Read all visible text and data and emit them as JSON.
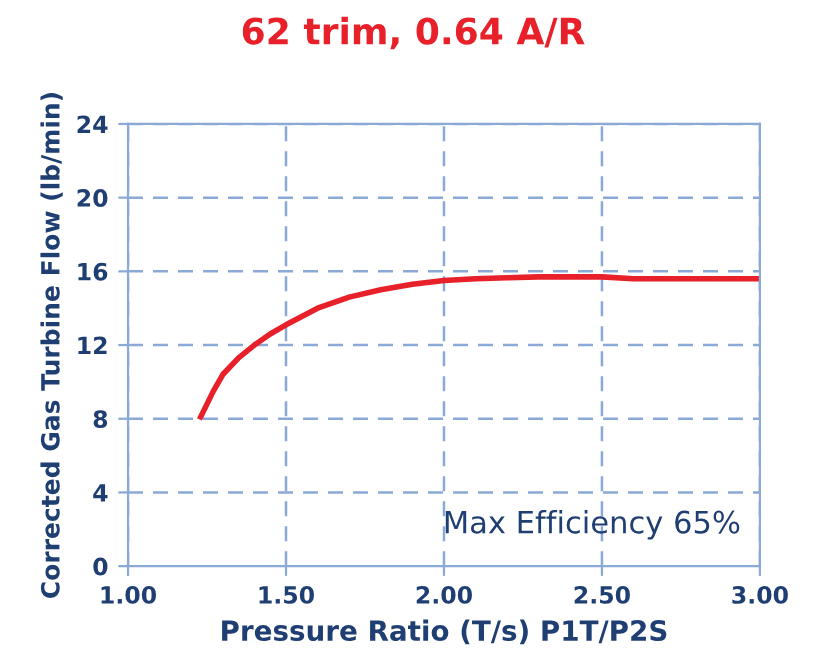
{
  "chart_data": {
    "type": "line",
    "title": "62 trim, 0.64 A/R",
    "xlabel": "Pressure Ratio (T/s) P1T/P2S",
    "ylabel": "Corrected Gas Turbine Flow (lb/min)",
    "annotations": [
      "Max Efficiency 65%"
    ],
    "series": [
      {
        "color": "#e8202a",
        "x": [
          1.23,
          1.27,
          1.3,
          1.35,
          1.4,
          1.45,
          1.5,
          1.6,
          1.7,
          1.8,
          1.9,
          2.0,
          2.1,
          2.2,
          2.3,
          2.4,
          2.5,
          2.6,
          2.8,
          3.0
        ],
        "values": [
          8.1,
          9.5,
          10.4,
          11.3,
          12.0,
          12.6,
          13.1,
          14.0,
          14.6,
          15.0,
          15.3,
          15.5,
          15.6,
          15.65,
          15.7,
          15.7,
          15.7,
          15.6,
          15.6,
          15.6
        ]
      }
    ],
    "xlim": [
      1.0,
      3.0
    ],
    "ylim": [
      0,
      24
    ],
    "xticks": [
      {
        "value": 1.0,
        "label": "1.00"
      },
      {
        "value": 1.5,
        "label": "1.50"
      },
      {
        "value": 2.0,
        "label": "2.00"
      },
      {
        "value": 2.5,
        "label": "2.50"
      },
      {
        "value": 3.0,
        "label": "3.00"
      }
    ],
    "yticks": [
      0,
      4,
      8,
      12,
      16,
      20,
      24
    ],
    "grid": true,
    "line_style": "solid",
    "marker": "none"
  }
}
